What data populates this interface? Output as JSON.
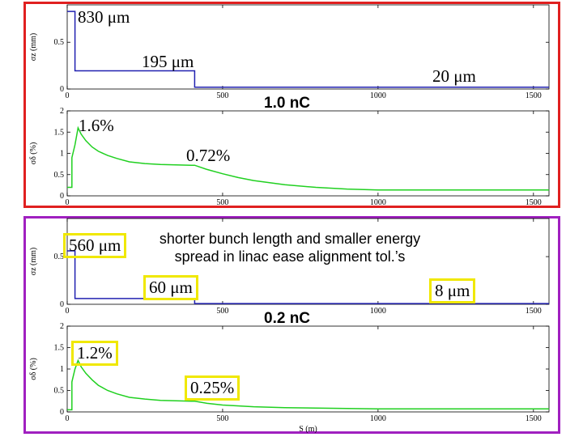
{
  "frames": {
    "top": {
      "charge_label": "1.0 nC",
      "color": "#e02020"
    },
    "bottom": {
      "charge_label": "0.2 nC",
      "color": "#a020c0"
    }
  },
  "annotations": {
    "top_sigma_start": "830 μm",
    "top_sigma_mid": "195 μm",
    "top_sigma_end": "20 μm",
    "top_energy_peak": "1.6%",
    "top_energy_mid": "0.72%",
    "bottom_sigma_start": "560 μm",
    "bottom_sigma_mid": "60 μm",
    "bottom_sigma_end": "8 μm",
    "bottom_energy_peak": "1.2%",
    "bottom_energy_mid": "0.25%",
    "note_line1": "shorter bunch length and smaller energy",
    "note_line2": "spread in linac ease alignment tol.’s"
  },
  "chart_data": [
    {
      "id": "top-sigma",
      "type": "line",
      "ylabel": "σz (mm)",
      "xlim": [
        0,
        1550
      ],
      "ylim": [
        0,
        0.9
      ],
      "xticks": [
        0,
        500,
        1000,
        1500
      ],
      "yticks": [
        0,
        0.5
      ],
      "color": "#2020b0",
      "series": [
        {
          "x": [
            0,
            25,
            25,
            410,
            410,
            1550
          ],
          "y": [
            0.83,
            0.83,
            0.195,
            0.195,
            0.02,
            0.02
          ]
        }
      ]
    },
    {
      "id": "top-energy",
      "type": "line",
      "ylabel": "σδ (%)",
      "xlim": [
        0,
        1550
      ],
      "ylim": [
        0,
        2
      ],
      "xticks": [
        0,
        500,
        1000,
        1500
      ],
      "yticks": [
        0,
        0.5,
        1,
        1.5,
        2
      ],
      "color": "#20d020",
      "series": [
        {
          "x": [
            0,
            15,
            15,
            25,
            35,
            45,
            60,
            80,
            100,
            130,
            160,
            200,
            250,
            300,
            350,
            400,
            410,
            450,
            500,
            550,
            600,
            700,
            800,
            900,
            1000,
            1550
          ],
          "y": [
            0.2,
            0.2,
            0.9,
            1.2,
            1.6,
            1.45,
            1.3,
            1.15,
            1.05,
            0.95,
            0.88,
            0.8,
            0.76,
            0.74,
            0.73,
            0.72,
            0.72,
            0.62,
            0.52,
            0.43,
            0.36,
            0.26,
            0.2,
            0.16,
            0.14,
            0.14
          ]
        }
      ]
    },
    {
      "id": "bottom-sigma",
      "type": "line",
      "ylabel": "σz (mm)",
      "xlim": [
        0,
        1550
      ],
      "ylim": [
        0,
        0.9
      ],
      "xticks": [
        0,
        500,
        1000,
        1500
      ],
      "yticks": [
        0,
        0.5
      ],
      "color": "#2020b0",
      "series": [
        {
          "x": [
            0,
            25,
            25,
            410,
            410,
            1550
          ],
          "y": [
            0.56,
            0.56,
            0.06,
            0.06,
            0.008,
            0.008
          ]
        }
      ]
    },
    {
      "id": "bottom-energy",
      "type": "line",
      "ylabel": "σδ (%)",
      "xlabel": "S (m)",
      "xlim": [
        0,
        1550
      ],
      "ylim": [
        0,
        2
      ],
      "xticks": [
        0,
        500,
        1000,
        1500
      ],
      "yticks": [
        0,
        0.5,
        1,
        1.5,
        2
      ],
      "color": "#20d020",
      "series": [
        {
          "x": [
            0,
            15,
            15,
            25,
            35,
            45,
            60,
            80,
            100,
            130,
            160,
            200,
            250,
            300,
            350,
            400,
            410,
            450,
            500,
            600,
            700,
            800,
            900,
            1000,
            1550
          ],
          "y": [
            0.05,
            0.05,
            0.7,
            1.0,
            1.2,
            1.05,
            0.9,
            0.75,
            0.62,
            0.5,
            0.42,
            0.34,
            0.3,
            0.27,
            0.26,
            0.25,
            0.25,
            0.2,
            0.16,
            0.12,
            0.1,
            0.09,
            0.08,
            0.07,
            0.07
          ]
        }
      ]
    }
  ]
}
